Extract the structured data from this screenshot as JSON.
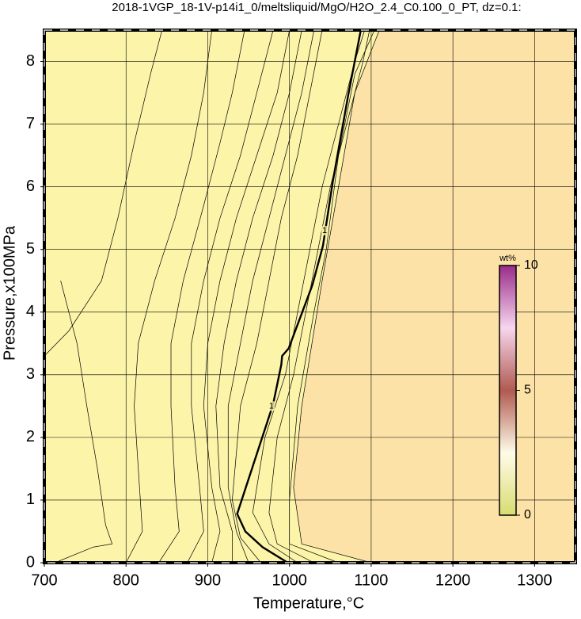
{
  "chart_data": {
    "type": "contour",
    "title": "2018-1VGP_18-1V-p14i1_0/meltsliquid/MgO/H2O_2.4_C0.100_0_PT, dz=0.1:",
    "x_label": "Temperature,°C",
    "y_label": "Pressure,x100MPa",
    "xlim": [
      700,
      1350
    ],
    "ylim": [
      0,
      8.5
    ],
    "xticks": [
      700,
      800,
      900,
      1000,
      1100,
      1200,
      1300
    ],
    "yticks": [
      0,
      1,
      2,
      3,
      4,
      5,
      6,
      7,
      8
    ],
    "grid": true,
    "background_colors": [
      "#fcf4a9",
      "#fde2a8"
    ],
    "contours": [
      {
        "x": [
          700,
          730,
          770,
          790,
          810,
          830,
          844
        ],
        "y": [
          3.3,
          3.7,
          4.5,
          5.5,
          6.7,
          7.8,
          8.5
        ]
      },
      {
        "x": [
          713,
          760,
          783,
          775,
          765,
          752,
          740,
          720
        ],
        "y": [
          0,
          0.25,
          0.3,
          0.6,
          1.5,
          2.5,
          3.5,
          4.5
        ]
      },
      {
        "x": [
          800,
          820,
          815,
          810,
          815,
          835,
          860,
          880,
          895,
          905
        ],
        "y": [
          0,
          0.5,
          1.5,
          2.5,
          3.5,
          4.5,
          5.5,
          6.5,
          7.5,
          8.5
        ]
      },
      {
        "x": [
          840,
          865,
          860,
          855,
          855,
          870,
          895,
          915,
          930,
          945
        ],
        "y": [
          0,
          0.5,
          1.2,
          2.5,
          3.5,
          4.5,
          5.7,
          6.7,
          7.5,
          8.5
        ]
      },
      {
        "x": [
          875,
          895,
          890,
          880,
          880,
          895,
          915,
          940,
          960,
          980
        ],
        "y": [
          0,
          0.5,
          1.2,
          2.5,
          3.5,
          4.5,
          5.5,
          6.5,
          7.5,
          8.5
        ]
      },
      {
        "x": [
          905,
          915,
          905,
          895,
          900,
          915,
          935,
          960,
          985,
          1000
        ],
        "y": [
          0,
          0.5,
          1.2,
          2.5,
          3.5,
          4.5,
          5.5,
          6.5,
          7.5,
          8.5
        ]
      },
      {
        "x": [
          930,
          930,
          915,
          910,
          920,
          935,
          955,
          980,
          1000,
          1015
        ],
        "y": [
          0,
          0.5,
          1.2,
          2.5,
          3.5,
          4.5,
          5.5,
          6.5,
          7.5,
          8.5
        ]
      },
      {
        "x": [
          950,
          935,
          925,
          925,
          940,
          955,
          975,
          995,
          1015,
          1030
        ],
        "y": [
          0,
          0.5,
          1.2,
          2.5,
          3.5,
          4.5,
          5.5,
          6.5,
          7.5,
          8.5
        ]
      },
      {
        "x": [
          965,
          940,
          930,
          940,
          960,
          975,
          990,
          1010,
          1025,
          1040
        ],
        "y": [
          0,
          0.4,
          1.0,
          2.5,
          3.5,
          4.5,
          5.5,
          6.5,
          7.5,
          8.5
        ]
      },
      {
        "x": [
          998,
          967,
          946,
          936,
          980,
          990,
          991,
          999,
          1028,
          1041,
          1053,
          1072,
          1087
        ],
        "y": [
          0,
          0.25,
          0.5,
          0.78,
          2.53,
          3.16,
          3.3,
          3.42,
          4.43,
          5.06,
          6.08,
          7.47,
          8.48
        ],
        "bold": true
      },
      {
        "x": [
          1010,
          975,
          955,
          970,
          995,
          1010,
          1025,
          1040,
          1060,
          1080,
          1092
        ],
        "y": [
          0,
          0.3,
          0.8,
          2.0,
          3.0,
          4.0,
          5.0,
          6.0,
          7.0,
          8.0,
          8.5
        ]
      },
      {
        "x": [
          1030,
          985,
          975,
          985,
          1005,
          1020,
          1035,
          1050,
          1070,
          1090,
          1098
        ],
        "y": [
          0,
          0.3,
          0.8,
          2.0,
          3.0,
          4.0,
          5.0,
          6.0,
          7.0,
          8.0,
          8.5
        ]
      },
      {
        "x": [
          1060,
          1000,
          1000,
          1010,
          1030,
          1045,
          1060,
          1080,
          1104
        ],
        "y": [
          0,
          0.3,
          1.0,
          2.5,
          4.0,
          5.0,
          6.5,
          7.8,
          8.5
        ]
      },
      {
        "x": [
          1100,
          1015,
          1005,
          1015,
          1040,
          1060,
          1080,
          1110
        ],
        "y": [
          0,
          0.3,
          1.2,
          2.5,
          4.5,
          6.0,
          7.5,
          8.5
        ]
      }
    ],
    "contour_labels": [
      {
        "text": "1",
        "x": 1043,
        "y": 5.3
      },
      {
        "text": "1",
        "x": 978,
        "y": 2.5
      }
    ],
    "colorbar": {
      "label": "wt%",
      "lim": [
        0,
        10
      ],
      "ticks": [
        0,
        5,
        10
      ],
      "colors": [
        "#d8dc70",
        "#fffce8",
        "#b05a50",
        "#f7d6ee",
        "#9a2c8a"
      ]
    }
  }
}
